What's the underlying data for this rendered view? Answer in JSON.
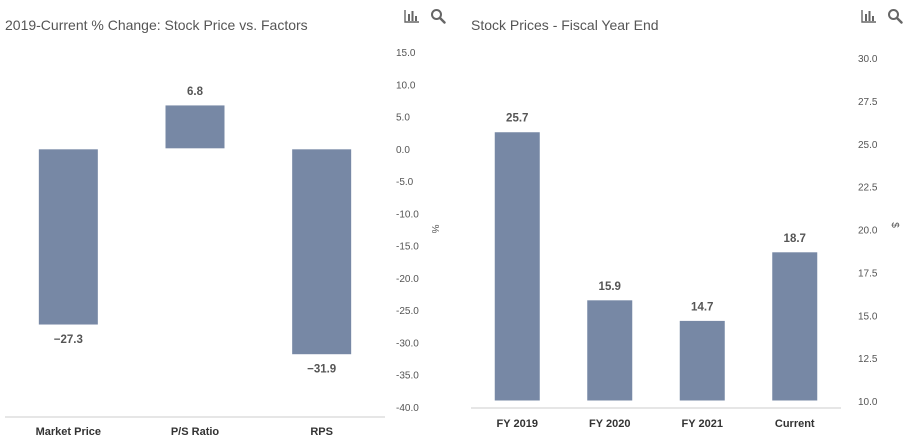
{
  "colors": {
    "bar": "#7788a5",
    "axis": "#cccccc",
    "icon": "#666666"
  },
  "toolbar": {
    "icons": [
      "bar-chart-icon",
      "search-icon"
    ]
  },
  "chart_data": [
    {
      "type": "bar",
      "title": "2019-Current % Change: Stock Price vs. Factors",
      "categories": [
        "Market Price",
        "P/S Ratio",
        "RPS"
      ],
      "values": [
        -27.3,
        6.8,
        -31.9
      ],
      "value_labels": [
        "−27.3",
        "6.8",
        "−31.9"
      ],
      "ylabel": "%",
      "ylim": [
        -40,
        15
      ],
      "yticks": [
        "15.0",
        "10.0",
        "5.0",
        "0.0",
        "-5.0",
        "-10.0",
        "-15.0",
        "-20.0",
        "-25.0",
        "-30.0",
        "-35.0",
        "-40.0"
      ],
      "axis_side": "right",
      "grid": false
    },
    {
      "type": "bar",
      "title": "Stock Prices - Fiscal Year End",
      "categories": [
        "FY 2019",
        "FY 2020",
        "FY 2021",
        "Current"
      ],
      "values": [
        25.7,
        15.9,
        14.7,
        18.7
      ],
      "value_labels": [
        "25.7",
        "15.9",
        "14.7",
        "18.7"
      ],
      "ylabel": "$",
      "ylim": [
        10,
        30
      ],
      "yticks": [
        "30.0",
        "27.5",
        "25.0",
        "22.5",
        "20.0",
        "17.5",
        "15.0",
        "12.5",
        "10.0"
      ],
      "axis_side": "right",
      "grid": false
    }
  ]
}
